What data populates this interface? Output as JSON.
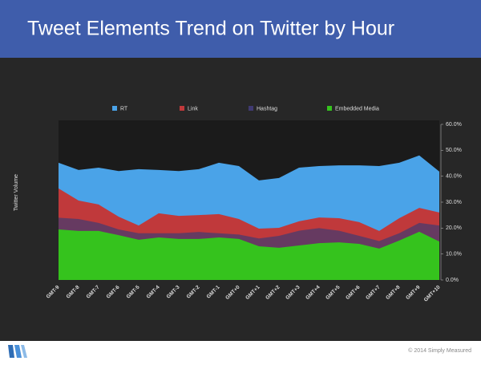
{
  "chart_data": {
    "type": "area",
    "title": "Tweet Elements Trend on Twitter by Hour",
    "y_label": "Twitter Volume",
    "categories": [
      "GMT-9",
      "GMT-8",
      "GMT-7",
      "GMT-6",
      "GMT-5",
      "GMT-4",
      "GMT-3",
      "GMT-2",
      "GMT-1",
      "GMT+0",
      "GMT+1",
      "GMT+2",
      "GMT+3",
      "GMT+4",
      "GMT+5",
      "GMT+6",
      "GMT+7",
      "GMT+8",
      "GMT+9",
      "GMT+10"
    ],
    "series": [
      {
        "name": "RT",
        "color": "#4aa3e8",
        "values": [
          45.2,
          42.4,
          43.3,
          42,
          42.7,
          42.4,
          42,
          42.7,
          45.2,
          43.9,
          38.4,
          39.3,
          43.3,
          43.9,
          44.2,
          44.2,
          43.9,
          45.2,
          48,
          41.8
        ]
      },
      {
        "name": "Link",
        "color": "#c0393b",
        "values": [
          35.3,
          30.6,
          29.1,
          24.4,
          21,
          25.7,
          24.7,
          25,
          25.4,
          23.5,
          19.8,
          20.1,
          22.6,
          24.1,
          23.8,
          22.3,
          18.9,
          23.8,
          27.8,
          26
        ]
      },
      {
        "name": "Hashtag",
        "color": "#403a72",
        "values": [
          24,
          23.5,
          22,
          19.5,
          18,
          18,
          18,
          18.5,
          18,
          17.5,
          16,
          17,
          19,
          20,
          19,
          17,
          15,
          18,
          22,
          21
        ]
      },
      {
        "name": "Embedded Media",
        "color": "#35c31d",
        "values": [
          19.5,
          18.9,
          18.9,
          17.3,
          15.5,
          16.4,
          15.8,
          15.8,
          16.4,
          15.8,
          13,
          12.4,
          13.3,
          14.2,
          14.5,
          13.9,
          12.1,
          15.2,
          18.6,
          14.8
        ]
      }
    ],
    "ylim": [
      0,
      60
    ],
    "yticks": [
      {
        "value": 0,
        "label": "0.0%"
      },
      {
        "value": 10,
        "label": "10.0%"
      },
      {
        "value": 20,
        "label": "20.0%"
      },
      {
        "value": 30,
        "label": "30.0%"
      },
      {
        "value": 40,
        "label": "40.0%"
      },
      {
        "value": 50,
        "label": "50.0%"
      },
      {
        "value": 60,
        "label": "60.0%"
      }
    ],
    "legend": "top"
  },
  "footer": {
    "copyright": "© 2014 Simply Measured"
  }
}
